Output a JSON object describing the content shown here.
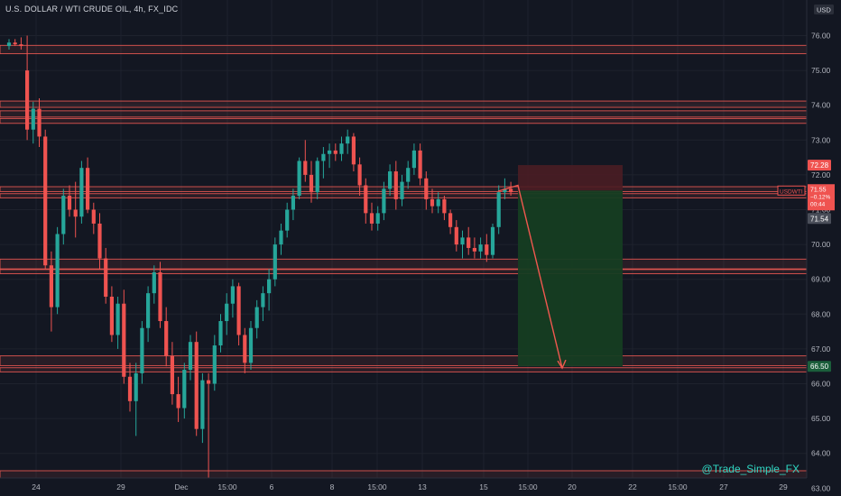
{
  "header": {
    "title": "U.S. DOLLAR / WTI CRUDE OIL, 4h, FX_IDC",
    "currency_badge": "USD"
  },
  "watermark": "@Trade_Simple_FX",
  "colors": {
    "background": "#131722",
    "up": "#26a69a",
    "down": "#ef5350",
    "zone_line": "#e05550",
    "stop_zone": "#4a1d24",
    "target_zone": "#153d22",
    "arrow": "#f0584f",
    "axis_text": "#b2b5be",
    "grid": "#1e222d"
  },
  "price_labels": {
    "stop": "72.28",
    "symbol": "USDWTI",
    "current": "71.55",
    "change": "−0.12%",
    "countdown": "00:44",
    "gray": "71.54",
    "target": "66.50"
  },
  "chart_data": {
    "type": "candlestick",
    "title": "U.S. DOLLAR / WTI CRUDE OIL, 4h, FX_IDC",
    "ylim": [
      62.3,
      76.2
    ],
    "y_ticks": [
      "76.00",
      "75.00",
      "74.00",
      "73.00",
      "72.00",
      "71.00",
      "70.00",
      "69.00",
      "68.00",
      "67.00",
      "66.00",
      "65.00",
      "64.00",
      "63.00"
    ],
    "x_ticks": [
      "24",
      "29",
      "Dec",
      "15:00",
      "6",
      "8",
      "15:00",
      "13",
      "15",
      "15:00",
      "20",
      "22",
      "15:00",
      "27",
      "29"
    ],
    "current_price": 71.55,
    "resistance_support_zones": [
      [
        75.72,
        75.48
      ],
      [
        74.12,
        73.94
      ],
      [
        73.84,
        73.66
      ],
      [
        73.62,
        73.48
      ],
      [
        71.66,
        71.52
      ],
      [
        71.46,
        71.34
      ],
      [
        69.58,
        69.3
      ],
      [
        69.28,
        69.16
      ],
      [
        66.8,
        66.52
      ],
      [
        66.46,
        66.34
      ],
      [
        63.5,
        63.2
      ],
      [
        63.18,
        63.06
      ]
    ],
    "short_position": {
      "entry": 71.55,
      "stop": 72.28,
      "target": 66.5
    },
    "projection": [
      [
        71.55,
        0
      ],
      [
        69.6,
        1
      ],
      [
        66.45,
        2
      ]
    ],
    "candles": [
      [
        75.7,
        75.9,
        75.6,
        75.8
      ],
      [
        75.8,
        75.9,
        75.7,
        75.75
      ],
      [
        75.75,
        75.95,
        75.6,
        75.7
      ],
      [
        75.0,
        76.0,
        73.0,
        73.3
      ],
      [
        73.3,
        74.1,
        72.9,
        73.9
      ],
      [
        73.9,
        74.2,
        72.8,
        73.1
      ],
      [
        73.1,
        73.3,
        69.3,
        69.4
      ],
      [
        69.4,
        69.8,
        67.5,
        68.2
      ],
      [
        68.2,
        70.5,
        68.0,
        70.3
      ],
      [
        70.3,
        71.6,
        70.0,
        71.4
      ],
      [
        71.4,
        71.7,
        70.8,
        71.0
      ],
      [
        71.0,
        71.8,
        70.2,
        70.8
      ],
      [
        70.8,
        72.4,
        70.6,
        72.2
      ],
      [
        72.2,
        72.5,
        70.9,
        71.0
      ],
      [
        71.0,
        71.2,
        70.3,
        70.6
      ],
      [
        70.6,
        70.9,
        69.3,
        69.6
      ],
      [
        69.6,
        69.9,
        68.3,
        68.5
      ],
      [
        68.5,
        68.8,
        67.2,
        67.4
      ],
      [
        67.4,
        68.5,
        67.0,
        68.3
      ],
      [
        68.3,
        68.7,
        66.0,
        66.2
      ],
      [
        66.2,
        66.6,
        65.2,
        65.5
      ],
      [
        65.5,
        66.6,
        64.5,
        66.3
      ],
      [
        66.3,
        67.8,
        66.0,
        67.6
      ],
      [
        67.6,
        68.8,
        67.2,
        68.6
      ],
      [
        68.6,
        69.4,
        68.3,
        69.2
      ],
      [
        69.2,
        69.5,
        67.6,
        67.8
      ],
      [
        67.8,
        68.2,
        66.5,
        66.8
      ],
      [
        66.8,
        67.2,
        65.4,
        65.7
      ],
      [
        65.7,
        66.2,
        64.9,
        65.3
      ],
      [
        65.3,
        66.6,
        65.0,
        66.4
      ],
      [
        66.4,
        67.4,
        66.1,
        67.2
      ],
      [
        67.2,
        67.5,
        64.5,
        64.7
      ],
      [
        64.7,
        66.3,
        64.3,
        66.1
      ],
      [
        66.1,
        66.3,
        62.5,
        66.0
      ],
      [
        66.0,
        67.4,
        65.8,
        67.1
      ],
      [
        67.1,
        68.0,
        66.9,
        67.8
      ],
      [
        67.8,
        68.6,
        67.4,
        68.3
      ],
      [
        68.3,
        69.0,
        67.9,
        68.8
      ],
      [
        68.8,
        68.9,
        67.1,
        67.4
      ],
      [
        67.4,
        67.6,
        66.3,
        66.6
      ],
      [
        66.6,
        67.8,
        66.4,
        67.6
      ],
      [
        67.6,
        68.4,
        67.3,
        68.2
      ],
      [
        68.2,
        68.8,
        67.8,
        68.6
      ],
      [
        68.6,
        69.3,
        68.1,
        69.0
      ],
      [
        69.0,
        70.2,
        68.8,
        70.0
      ],
      [
        70.0,
        70.6,
        69.7,
        70.4
      ],
      [
        70.4,
        71.2,
        70.2,
        71.0
      ],
      [
        71.0,
        71.6,
        70.7,
        71.4
      ],
      [
        71.4,
        72.5,
        71.3,
        72.4
      ],
      [
        72.4,
        73.0,
        71.8,
        72.0
      ],
      [
        72.0,
        72.4,
        71.2,
        71.5
      ],
      [
        71.5,
        72.5,
        71.3,
        72.4
      ],
      [
        72.4,
        72.8,
        71.9,
        72.6
      ],
      [
        72.6,
        72.9,
        72.2,
        72.7
      ],
      [
        72.7,
        72.9,
        72.4,
        72.6
      ],
      [
        72.6,
        73.1,
        72.4,
        72.9
      ],
      [
        72.9,
        73.3,
        72.6,
        73.1
      ],
      [
        73.1,
        73.2,
        72.1,
        72.3
      ],
      [
        72.3,
        72.5,
        71.4,
        71.7
      ],
      [
        71.7,
        71.9,
        70.6,
        70.9
      ],
      [
        70.9,
        71.2,
        70.4,
        70.6
      ],
      [
        70.6,
        71.1,
        70.4,
        70.9
      ],
      [
        70.9,
        71.8,
        70.7,
        71.6
      ],
      [
        71.6,
        72.3,
        71.4,
        72.1
      ],
      [
        72.1,
        72.4,
        71.0,
        71.3
      ],
      [
        71.3,
        72.0,
        71.1,
        71.8
      ],
      [
        71.8,
        72.4,
        71.6,
        72.2
      ],
      [
        72.2,
        72.9,
        72.0,
        72.7
      ],
      [
        72.7,
        72.9,
        71.7,
        71.9
      ],
      [
        71.9,
        72.1,
        71.0,
        71.3
      ],
      [
        71.3,
        71.6,
        70.9,
        71.1
      ],
      [
        71.1,
        71.5,
        70.9,
        71.3
      ],
      [
        71.3,
        71.4,
        70.7,
        70.9
      ],
      [
        70.9,
        71.0,
        70.3,
        70.5
      ],
      [
        70.5,
        70.7,
        69.8,
        70.0
      ],
      [
        70.0,
        70.4,
        69.6,
        70.2
      ],
      [
        70.2,
        70.5,
        69.7,
        69.9
      ],
      [
        69.9,
        70.2,
        69.6,
        69.8
      ],
      [
        69.8,
        70.2,
        69.6,
        70.0
      ],
      [
        70.0,
        70.3,
        69.5,
        69.7
      ],
      [
        69.7,
        70.6,
        69.6,
        70.5
      ],
      [
        70.5,
        71.7,
        70.3,
        71.5
      ],
      [
        71.5,
        71.9,
        71.3,
        71.6
      ],
      [
        71.6,
        71.8,
        71.4,
        71.5
      ]
    ]
  }
}
